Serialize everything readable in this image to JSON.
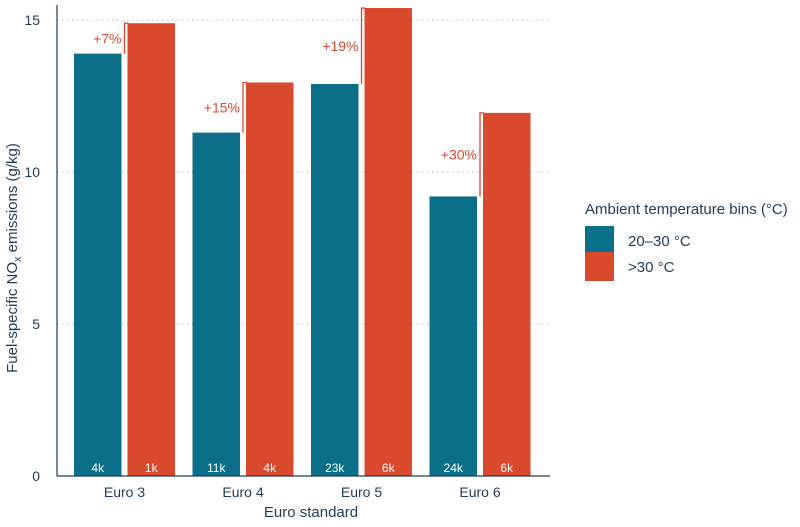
{
  "chart_data": {
    "type": "bar",
    "xlabel": "Euro standard",
    "ylabel_main": "Fuel-specific NO",
    "ylabel_sub": "x",
    "ylabel_tail": " emissions (g/kg)",
    "ylim": [
      0,
      15.5
    ],
    "yticks": [
      "0",
      "5",
      "10",
      "15"
    ],
    "ytick_values": [
      0,
      5,
      10,
      15
    ],
    "grid": "horizontal dotted",
    "legend_position": "right",
    "legend_title": "Ambient temperature bins (°C)",
    "categories": [
      "Euro 3",
      "Euro 4",
      "Euro 5",
      "Euro 6"
    ],
    "series": [
      {
        "name": "20–30 °C",
        "color": "#0b6f8a",
        "values": [
          13.9,
          11.3,
          12.9,
          9.2
        ],
        "counts": [
          "4k",
          "11k",
          "23k",
          "24k"
        ]
      },
      {
        "name": ">30 °C",
        "color": "#d9492e",
        "values": [
          14.9,
          12.95,
          15.4,
          11.95
        ],
        "counts": [
          "1k",
          "4k",
          "6k",
          "6k"
        ]
      }
    ],
    "increase_labels": [
      "+7%",
      "+15%",
      "+19%",
      "+30%"
    ],
    "annotation_color": "#d9492e"
  }
}
